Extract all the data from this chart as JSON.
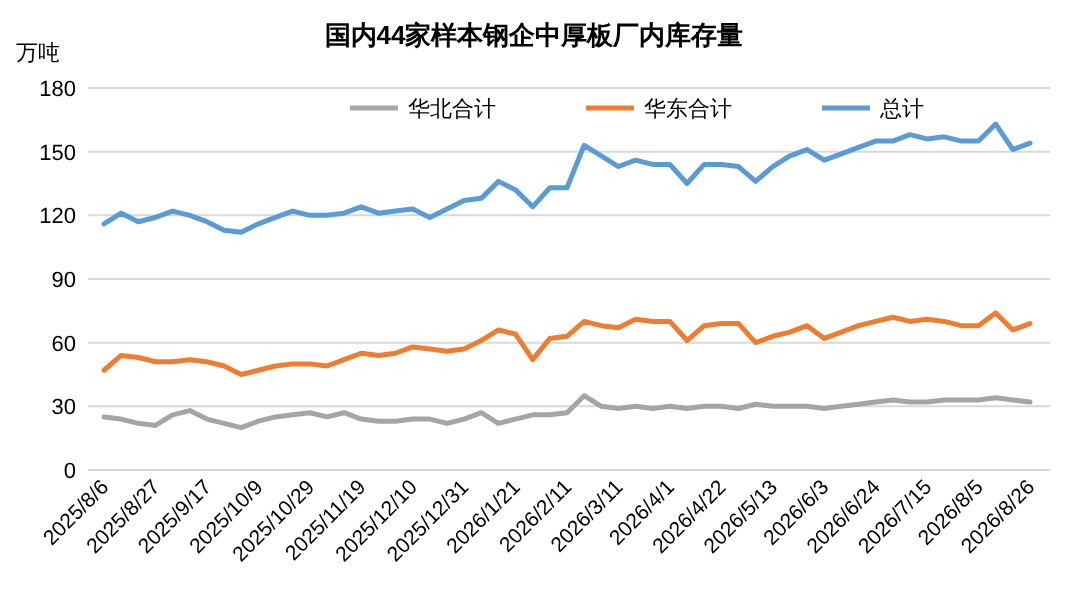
{
  "chart_data": {
    "type": "line",
    "title": "国内44家样本钢企中厚板厂内库存量",
    "ylabel": "万吨",
    "categories": [
      "2025/8/6",
      null,
      null,
      "2025/8/27",
      null,
      null,
      "2025/9/17",
      null,
      null,
      "2025/10/9",
      null,
      null,
      "2025/10/29",
      null,
      null,
      "2025/11/19",
      null,
      null,
      "2025/12/10",
      null,
      null,
      "2025/12/31",
      null,
      null,
      "2026/1/21",
      null,
      null,
      "2026/2/11",
      null,
      null,
      "2026/3/11",
      null,
      null,
      "2026/4/1",
      null,
      null,
      "2026/4/22",
      null,
      null,
      "2026/5/13",
      null,
      null,
      "2026/6/3",
      null,
      null,
      "2026/6/24",
      null,
      null,
      "2026/7/15",
      null,
      null,
      "2026/8/5",
      null,
      null,
      "2026/8/26"
    ],
    "series": [
      {
        "name": "华北合计",
        "color": "#a5a5a5",
        "values": [
          25,
          24,
          22,
          21,
          26,
          28,
          24,
          22,
          20,
          23,
          25,
          26,
          27,
          25,
          27,
          24,
          23,
          23,
          24,
          24,
          22,
          24,
          27,
          22,
          24,
          26,
          26,
          27,
          35,
          30,
          29,
          30,
          29,
          30,
          29,
          30,
          30,
          29,
          31,
          30,
          30,
          30,
          29,
          30,
          31,
          32,
          33,
          32,
          32,
          33,
          33,
          33,
          34,
          33,
          32
        ]
      },
      {
        "name": "华东合计",
        "color": "#ed7d31",
        "values": [
          47,
          54,
          53,
          51,
          51,
          52,
          51,
          49,
          45,
          47,
          49,
          50,
          50,
          49,
          52,
          55,
          54,
          55,
          58,
          57,
          56,
          57,
          61,
          66,
          64,
          52,
          62,
          63,
          70,
          68,
          67,
          71,
          70,
          70,
          61,
          68,
          69,
          69,
          60,
          63,
          65,
          68,
          62,
          65,
          68,
          70,
          72,
          70,
          71,
          70,
          68,
          68,
          74,
          66,
          69
        ]
      },
      {
        "name": "总计",
        "color": "#5b9bd5",
        "values": [
          116,
          121,
          117,
          119,
          122,
          120,
          117,
          113,
          112,
          116,
          119,
          122,
          120,
          120,
          121,
          124,
          121,
          122,
          123,
          119,
          123,
          127,
          128,
          136,
          132,
          124,
          133,
          133,
          153,
          148,
          143,
          146,
          144,
          144,
          135,
          144,
          144,
          143,
          136,
          143,
          148,
          151,
          146,
          149,
          152,
          155,
          155,
          158,
          156,
          157,
          155,
          155,
          163,
          151,
          154
        ]
      }
    ],
    "ylim": [
      0,
      180
    ],
    "yticks": [
      0,
      30,
      60,
      90,
      120,
      150,
      180
    ],
    "grid": "y",
    "legend": "top",
    "marker": "none",
    "line_style": "solid"
  }
}
